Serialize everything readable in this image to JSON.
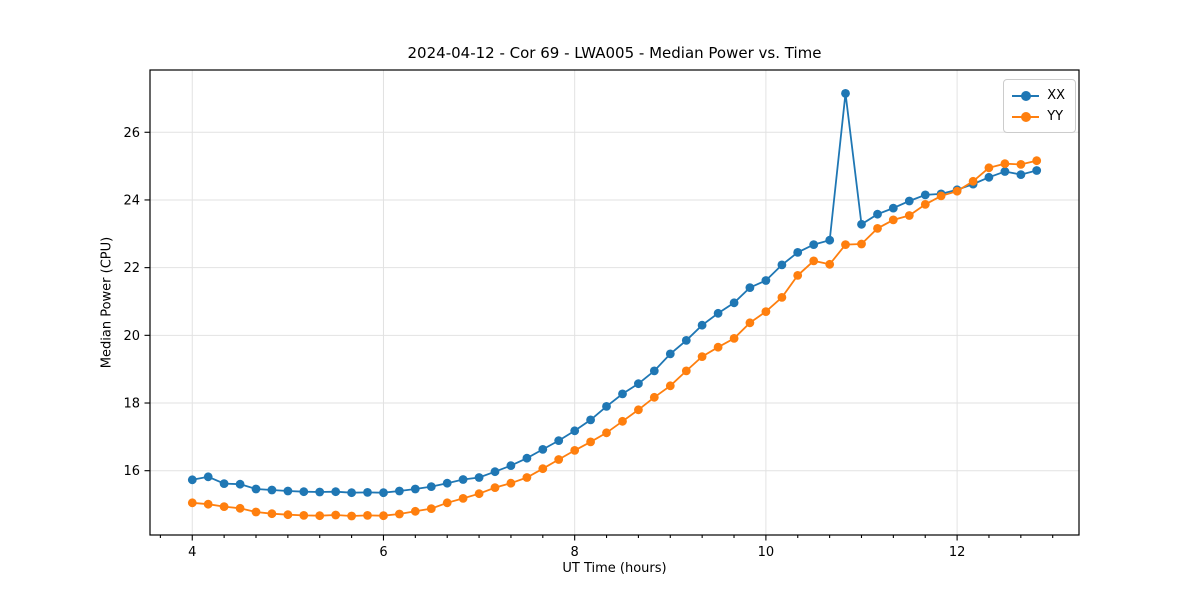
{
  "chart_data": {
    "type": "line",
    "title": "2024-04-12 - Cor 69 - LWA005 - Median Power vs. Time",
    "xlabel": "UT Time (hours)",
    "ylabel": "Median Power (CPU)",
    "xlim": [
      3.558,
      13.275
    ],
    "ylim": [
      14.1,
      27.84
    ],
    "x_ticks": [
      4,
      6,
      8,
      10,
      12
    ],
    "y_ticks": [
      16,
      18,
      20,
      22,
      24,
      26
    ],
    "x_minor_step": 0.33333,
    "grid": true,
    "legend_position": "upper right",
    "x": [
      4.0,
      4.167,
      4.333,
      4.5,
      4.667,
      4.833,
      5.0,
      5.167,
      5.333,
      5.5,
      5.667,
      5.833,
      6.0,
      6.167,
      6.333,
      6.5,
      6.667,
      6.833,
      7.0,
      7.167,
      7.333,
      7.5,
      7.667,
      7.833,
      8.0,
      8.167,
      8.333,
      8.5,
      8.667,
      8.833,
      9.0,
      9.167,
      9.333,
      9.5,
      9.667,
      9.833,
      10.0,
      10.167,
      10.333,
      10.5,
      10.667,
      10.833,
      11.0,
      11.167,
      11.333,
      11.5,
      11.667,
      11.833,
      12.0,
      12.167,
      12.333,
      12.5,
      12.667,
      12.833
    ],
    "series": [
      {
        "name": "XX",
        "color": "#1f77b4",
        "values": [
          15.73,
          15.82,
          15.62,
          15.6,
          15.46,
          15.43,
          15.4,
          15.38,
          15.37,
          15.38,
          15.35,
          15.36,
          15.35,
          15.4,
          15.46,
          15.53,
          15.63,
          15.74,
          15.8,
          15.97,
          16.15,
          16.37,
          16.63,
          16.89,
          17.18,
          17.5,
          17.9,
          18.27,
          18.57,
          18.95,
          19.45,
          19.85,
          20.3,
          20.65,
          20.96,
          21.41,
          21.62,
          22.08,
          22.45,
          22.68,
          22.81,
          27.15,
          23.28,
          23.58,
          23.76,
          23.97,
          24.15,
          24.18,
          24.3,
          24.47,
          24.67,
          24.84,
          24.75,
          24.87
        ]
      },
      {
        "name": "YY",
        "color": "#ff7f0e",
        "values": [
          15.05,
          15.01,
          14.94,
          14.89,
          14.78,
          14.73,
          14.7,
          14.68,
          14.67,
          14.69,
          14.66,
          14.68,
          14.67,
          14.72,
          14.8,
          14.88,
          15.05,
          15.18,
          15.32,
          15.5,
          15.63,
          15.8,
          16.06,
          16.33,
          16.6,
          16.85,
          17.12,
          17.46,
          17.8,
          18.17,
          18.51,
          18.95,
          19.37,
          19.65,
          19.91,
          20.37,
          20.7,
          21.12,
          21.77,
          22.2,
          22.1,
          22.68,
          22.7,
          23.16,
          23.41,
          23.54,
          23.87,
          24.12,
          24.26,
          24.55,
          24.95,
          25.07,
          25.05,
          25.16
        ]
      }
    ]
  }
}
